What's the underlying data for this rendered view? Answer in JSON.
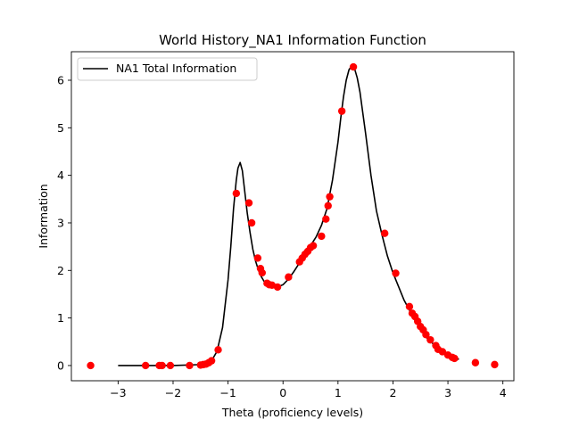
{
  "chart_data": {
    "type": "line",
    "title": "World History_NA1 Information Function",
    "xlabel": "Theta (proficiency levels)",
    "ylabel": "Information",
    "xlim": [
      -3.85,
      4.2
    ],
    "ylim": [
      -0.32,
      6.6
    ],
    "xticks": [
      -3,
      -2,
      -1,
      0,
      1,
      2,
      3,
      4
    ],
    "yticks": [
      0,
      1,
      2,
      3,
      4,
      5,
      6
    ],
    "grid": false,
    "legend_position": "top-left",
    "line_color": "#000000",
    "point_color": "#ff0000",
    "series": [
      {
        "name": "NA1 Total Information",
        "type": "line",
        "x": [
          -3.0,
          -2.0,
          -1.5,
          -1.3,
          -1.2,
          -1.1,
          -1.0,
          -0.95,
          -0.9,
          -0.85,
          -0.82,
          -0.78,
          -0.74,
          -0.7,
          -0.65,
          -0.6,
          -0.55,
          -0.5,
          -0.45,
          -0.4,
          -0.35,
          -0.3,
          -0.2,
          -0.1,
          0.0,
          0.1,
          0.2,
          0.3,
          0.4,
          0.5,
          0.6,
          0.7,
          0.8,
          0.9,
          1.0,
          1.05,
          1.1,
          1.15,
          1.2,
          1.25,
          1.3,
          1.35,
          1.4,
          1.5,
          1.6,
          1.7,
          1.8,
          1.9,
          2.0,
          2.2,
          2.4,
          2.6,
          2.8,
          3.0,
          3.2
        ],
        "y": [
          0.0,
          0.0,
          0.02,
          0.1,
          0.3,
          0.8,
          1.8,
          2.5,
          3.3,
          3.9,
          4.15,
          4.27,
          4.1,
          3.7,
          3.2,
          2.8,
          2.45,
          2.2,
          2.02,
          1.88,
          1.78,
          1.72,
          1.66,
          1.65,
          1.7,
          1.82,
          1.98,
          2.16,
          2.34,
          2.52,
          2.7,
          2.95,
          3.3,
          3.9,
          4.7,
          5.2,
          5.65,
          6.0,
          6.22,
          6.3,
          6.25,
          6.05,
          5.75,
          4.9,
          4.0,
          3.25,
          2.75,
          2.3,
          1.95,
          1.38,
          0.95,
          0.6,
          0.38,
          0.22,
          0.13
        ]
      },
      {
        "name": "",
        "type": "scatter",
        "x": [
          -3.5,
          -2.5,
          -2.25,
          -2.2,
          -2.05,
          -1.7,
          -1.5,
          -1.45,
          -1.4,
          -1.35,
          -1.3,
          -1.18,
          -0.85,
          -0.62,
          -0.57,
          -0.46,
          -0.41,
          -0.38,
          -0.29,
          -0.25,
          -0.2,
          -0.1,
          0.1,
          0.3,
          0.35,
          0.4,
          0.45,
          0.5,
          0.55,
          0.7,
          0.78,
          0.82,
          0.85,
          1.07,
          1.28,
          1.85,
          2.05,
          2.3,
          2.35,
          2.4,
          2.45,
          2.5,
          2.55,
          2.6,
          2.68,
          2.78,
          2.82,
          2.9,
          3.0,
          3.08,
          3.12,
          3.5,
          3.85
        ],
        "y": [
          0.0,
          0.0,
          0.0,
          0.0,
          0.0,
          0.0,
          0.01,
          0.02,
          0.03,
          0.06,
          0.1,
          0.33,
          3.62,
          3.42,
          3.0,
          2.26,
          2.04,
          1.95,
          1.73,
          1.7,
          1.69,
          1.65,
          1.86,
          2.18,
          2.26,
          2.34,
          2.4,
          2.48,
          2.52,
          2.72,
          3.08,
          3.36,
          3.55,
          5.35,
          6.28,
          2.78,
          1.94,
          1.24,
          1.1,
          1.03,
          0.93,
          0.82,
          0.75,
          0.65,
          0.54,
          0.42,
          0.34,
          0.29,
          0.22,
          0.17,
          0.15,
          0.06,
          0.02
        ]
      }
    ]
  }
}
